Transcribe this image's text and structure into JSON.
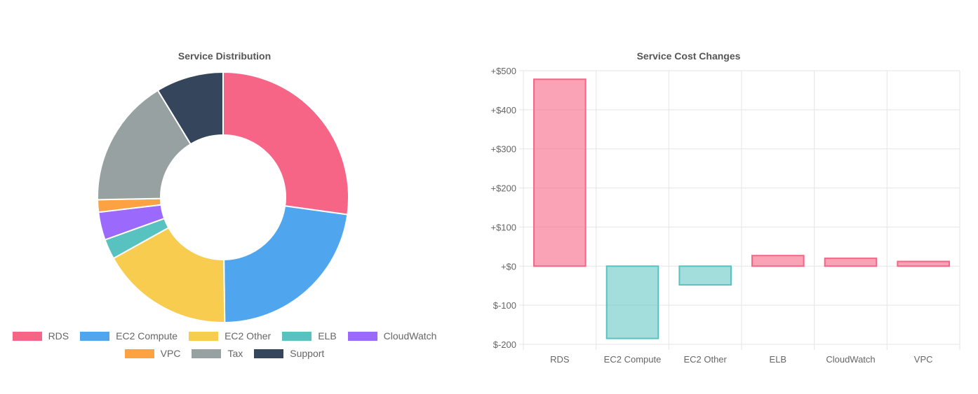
{
  "colors": {
    "RDS": "#f66586",
    "EC2 Compute": "#4fa6ef",
    "EC2 Other": "#f8cc4f",
    "ELB": "#58c2c1",
    "CloudWatch": "#9b6afc",
    "VPC": "#fca242",
    "Tax": "#97a1a1",
    "Support": "#34455c",
    "grid": "#e5e5e5",
    "positive_fill": "rgba(246,101,134,0.6)",
    "positive_stroke": "#f66586",
    "negative_fill": "rgba(88,194,193,0.55)",
    "negative_stroke": "#58c2c1"
  },
  "chart_data": [
    {
      "type": "doughnut",
      "title": "Service Distribution",
      "categories": [
        "RDS",
        "EC2 Compute",
        "EC2 Other",
        "ELB",
        "CloudWatch",
        "VPC",
        "Tax",
        "Support"
      ],
      "values": [
        27.2,
        22.6,
        17.1,
        2.6,
        3.6,
        1.6,
        16.6,
        8.7
      ],
      "unit": "percent",
      "legend": "bottom"
    },
    {
      "type": "bar",
      "title": "Service Cost Changes",
      "categories": [
        "RDS",
        "EC2 Compute",
        "EC2 Other",
        "ELB",
        "CloudWatch",
        "VPC"
      ],
      "values": [
        478,
        -185,
        -48,
        27,
        20,
        12
      ],
      "ylim": [
        -200,
        500
      ],
      "yticks": [
        500,
        400,
        300,
        200,
        100,
        0,
        -100,
        -200
      ],
      "ytick_labels": [
        "+$500",
        "+$400",
        "+$300",
        "+$200",
        "+$100",
        "+$0",
        "$-100",
        "$-200"
      ],
      "grid": true
    }
  ]
}
